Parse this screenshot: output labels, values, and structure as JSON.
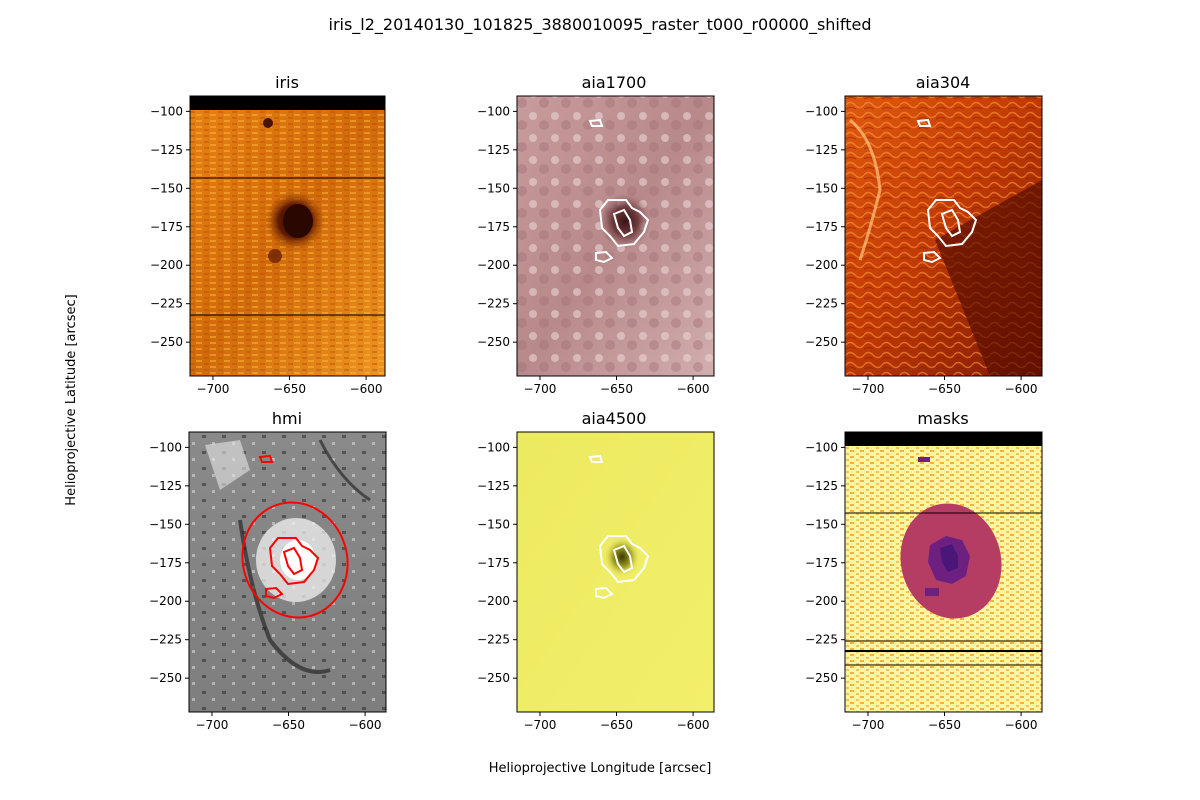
{
  "figure": {
    "title": "iris_l2_20140130_101825_3880010095_raster_t000_r00000_shifted",
    "xlabel": "Helioprojective Longitude [arcsec]",
    "ylabel": "Helioprojective Latitude [arcsec]"
  },
  "colors": {
    "contour_white": "#ffffff",
    "contour_red": "#ff0000",
    "frame": "#000000"
  },
  "chart_data": [
    {
      "type": "heatmap",
      "title": "iris",
      "xlim": [
        -715,
        -587
      ],
      "ylim": [
        -272,
        -90
      ],
      "xticks": [
        -700,
        -650,
        -600
      ],
      "yticks": [
        -100,
        -125,
        -150,
        -175,
        -200,
        -225,
        -250
      ],
      "colormap": "afmhot",
      "contours": [],
      "features": [
        "dark umbra centred near (-645, -172)",
        "horizontal data-gap lines near y=-143 and y=-233",
        "no data above y=-98"
      ]
    },
    {
      "type": "heatmap",
      "title": "aia1700",
      "xlim": [
        -715,
        -587
      ],
      "ylim": [
        -272,
        -90
      ],
      "xticks": [
        -700,
        -650,
        -600
      ],
      "yticks": [
        -100,
        -125,
        -150,
        -175,
        -200,
        -225,
        -250
      ],
      "colormap": "sdoaia1700",
      "contours": [
        "white"
      ],
      "features": [
        "dark spot near (-645, -172)"
      ]
    },
    {
      "type": "heatmap",
      "title": "aia304",
      "xlim": [
        -715,
        -587
      ],
      "ylim": [
        -272,
        -90
      ],
      "xticks": [
        -700,
        -650,
        -600
      ],
      "yticks": [
        -100,
        -125,
        -150,
        -175,
        -200,
        -225,
        -250
      ],
      "colormap": "sdoaia304",
      "contours": [
        "white"
      ],
      "features": [
        "dark filament channel toward lower right"
      ]
    },
    {
      "type": "heatmap",
      "title": "hmi",
      "xlim": [
        -715,
        -587
      ],
      "ylim": [
        -272,
        -90
      ],
      "xticks": [
        -700,
        -650,
        -600
      ],
      "yticks": [
        -100,
        -125,
        -150,
        -175,
        -200,
        -225,
        -250
      ],
      "colormap": "gray",
      "contours": [
        "red"
      ],
      "features": [
        "red elliptical contour centred near (-645, -175)",
        "dark negative-polarity network to the left and top"
      ]
    },
    {
      "type": "heatmap",
      "title": "aia4500",
      "xlim": [
        -715,
        -587
      ],
      "ylim": [
        -272,
        -90
      ],
      "xticks": [
        -700,
        -650,
        -600
      ],
      "yticks": [
        -100,
        -125,
        -150,
        -175,
        -200,
        -225,
        -250
      ],
      "colormap": "sdoaia4500",
      "contours": [
        "white"
      ],
      "features": [
        "dark spot near (-645, -172)"
      ]
    },
    {
      "type": "heatmap",
      "title": "masks",
      "xlim": [
        -715,
        -587
      ],
      "ylim": [
        -272,
        -90
      ],
      "xticks": [
        -700,
        -650,
        -600
      ],
      "yticks": [
        -100,
        -125,
        -150,
        -175,
        -200,
        -225,
        -250
      ],
      "colormap": "inferno_r",
      "contours": [],
      "features": [
        "penumbra ellipse centred near (-648, -177)",
        "umbra patch near (-645, -172)",
        "no data above y=-98"
      ]
    }
  ]
}
